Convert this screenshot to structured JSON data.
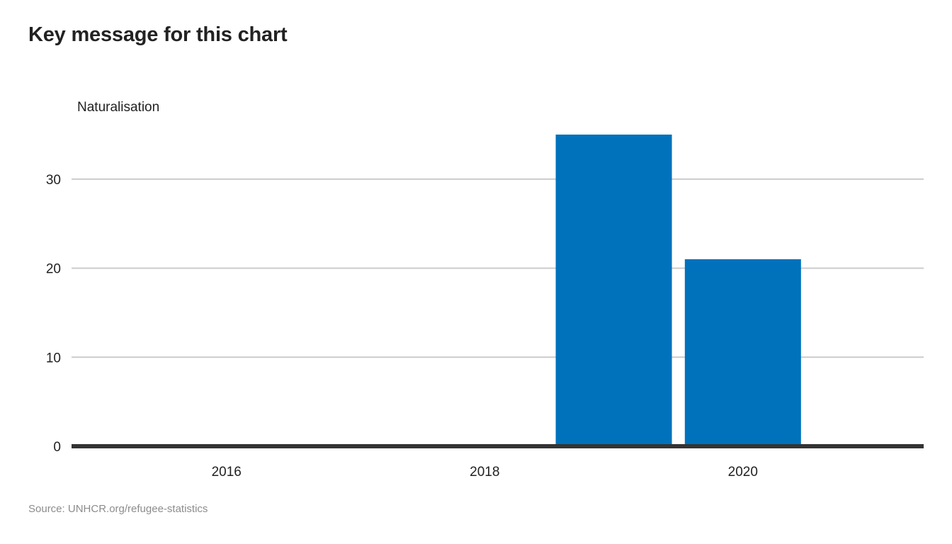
{
  "header": {
    "title": "Key message for this chart"
  },
  "footer": {
    "source": "Source: UNHCR.org/refugee-statistics"
  },
  "colors": {
    "bar": "#0072bc",
    "grid": "#cccccc",
    "baseline": "#333333",
    "text": "#222222",
    "source": "#8c8c8c"
  },
  "chart_data": {
    "type": "bar",
    "title": "Key message for this chart",
    "ylabel": "Naturalisation",
    "xlabel": "",
    "x": [
      2019,
      2020
    ],
    "values": [
      35,
      21
    ],
    "xlim": [
      2014.8,
      2021.4
    ],
    "xticks": [
      2016,
      2018,
      2020
    ],
    "ylim": [
      0,
      35
    ],
    "yticks": [
      0,
      10,
      20,
      30
    ],
    "grid": true,
    "legend": "none"
  }
}
